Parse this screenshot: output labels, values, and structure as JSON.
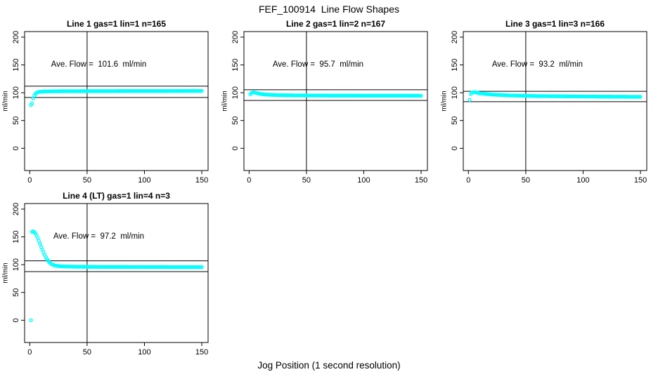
{
  "figure": {
    "title": "FEF_100914  Line Flow Shapes",
    "xlabel": "Jog Position (1 second resolution)"
  },
  "colors": {
    "point": "#00FFFF",
    "line": "#000000",
    "text": "#000000",
    "background": "#FFFFFF"
  },
  "chart_data": [
    {
      "type": "scatter",
      "title": "Line 1 gas=1 lin=1 n=165",
      "annotation": "Ave. Flow =  101.6  ml/min",
      "ave_flow_ml_min": 101.6,
      "n": 165,
      "ylabel": "ml/min",
      "xticks": [
        0,
        50,
        100,
        150
      ],
      "yticks": [
        0,
        50,
        100,
        150,
        200
      ],
      "xlim": [
        -4.5,
        155.5
      ],
      "ylim": [
        -40,
        210
      ],
      "vline_x": 50,
      "hlines": [
        111.8,
        91.4
      ],
      "keypoints": [
        [
          1,
          78
        ],
        [
          2,
          81
        ],
        [
          3,
          90
        ],
        [
          4,
          95
        ],
        [
          5,
          98
        ],
        [
          6,
          100
        ],
        [
          8,
          101.5
        ],
        [
          12,
          102.2
        ],
        [
          20,
          102.6
        ],
        [
          40,
          102.8
        ],
        [
          80,
          103
        ],
        [
          150,
          103.2
        ]
      ]
    },
    {
      "type": "scatter",
      "title": "Line 2 gas=1 lin=2 n=167",
      "annotation": "Ave. Flow =  95.7  ml/min",
      "ave_flow_ml_min": 95.7,
      "n": 167,
      "ylabel": "ml/min",
      "xticks": [
        0,
        50,
        100,
        150
      ],
      "yticks": [
        0,
        50,
        100,
        150,
        200
      ],
      "xlim": [
        -4.5,
        155.5
      ],
      "ylim": [
        -40,
        210
      ],
      "vline_x": 50,
      "hlines": [
        105.3,
        86.1
      ],
      "keypoints": [
        [
          1,
          97
        ],
        [
          2,
          99.5
        ],
        [
          3,
          100.4
        ],
        [
          5,
          100.2
        ],
        [
          7,
          99.2
        ],
        [
          10,
          97.8
        ],
        [
          15,
          96.6
        ],
        [
          25,
          95.7
        ],
        [
          40,
          95.2
        ],
        [
          70,
          94.9
        ],
        [
          110,
          94.7
        ],
        [
          150,
          94.6
        ]
      ]
    },
    {
      "type": "scatter",
      "title": "Line 3 gas=1 lin=3 n=166",
      "annotation": "Ave. Flow =  93.2  ml/min",
      "ave_flow_ml_min": 93.2,
      "n": 166,
      "ylabel": "ml/min",
      "xticks": [
        0,
        50,
        100,
        150
      ],
      "yticks": [
        0,
        50,
        100,
        150,
        200
      ],
      "xlim": [
        -4.5,
        155.5
      ],
      "ylim": [
        -40,
        210
      ],
      "vline_x": 50,
      "hlines": [
        102.5,
        83.9
      ],
      "keypoints": [
        [
          1,
          87
        ],
        [
          2,
          97.5
        ],
        [
          3,
          100.3
        ],
        [
          5,
          101
        ],
        [
          7,
          100.3
        ],
        [
          10,
          99
        ],
        [
          15,
          97.8
        ],
        [
          22,
          96.6
        ],
        [
          35,
          95.2
        ],
        [
          60,
          94
        ],
        [
          100,
          93.2
        ],
        [
          130,
          92.8
        ],
        [
          150,
          92.6
        ]
      ]
    },
    {
      "type": "scatter",
      "title": "Line 4 (LT) gas=1 lin=4 n=3",
      "annotation": "Ave. Flow =  97.2  ml/min",
      "ave_flow_ml_min": 97.2,
      "n": 3,
      "ylabel": "ml/min",
      "xticks": [
        0,
        50,
        100,
        150
      ],
      "yticks": [
        0,
        50,
        100,
        150,
        200
      ],
      "xlim": [
        -4.5,
        155.5
      ],
      "ylim": [
        -40,
        210
      ],
      "vline_x": 50,
      "hlines": [
        106.9,
        87.5
      ],
      "keypoints": [
        [
          1,
          0
        ],
        [
          2,
          159
        ],
        [
          3,
          160
        ],
        [
          4,
          158.5
        ],
        [
          5,
          156
        ],
        [
          6,
          152
        ],
        [
          7,
          147.5
        ],
        [
          8,
          142.5
        ],
        [
          9,
          137.5
        ],
        [
          10,
          132
        ],
        [
          11,
          127
        ],
        [
          12,
          122
        ],
        [
          13,
          117.5
        ],
        [
          14,
          113.5
        ],
        [
          15,
          110
        ],
        [
          16,
          107
        ],
        [
          17,
          104.5
        ],
        [
          18,
          102.5
        ],
        [
          19,
          101
        ],
        [
          20,
          100
        ],
        [
          22,
          98.6
        ],
        [
          25,
          97.5
        ],
        [
          30,
          96.8
        ],
        [
          40,
          96.3
        ],
        [
          60,
          96
        ],
        [
          100,
          95.8
        ],
        [
          150,
          95.6
        ]
      ]
    }
  ]
}
